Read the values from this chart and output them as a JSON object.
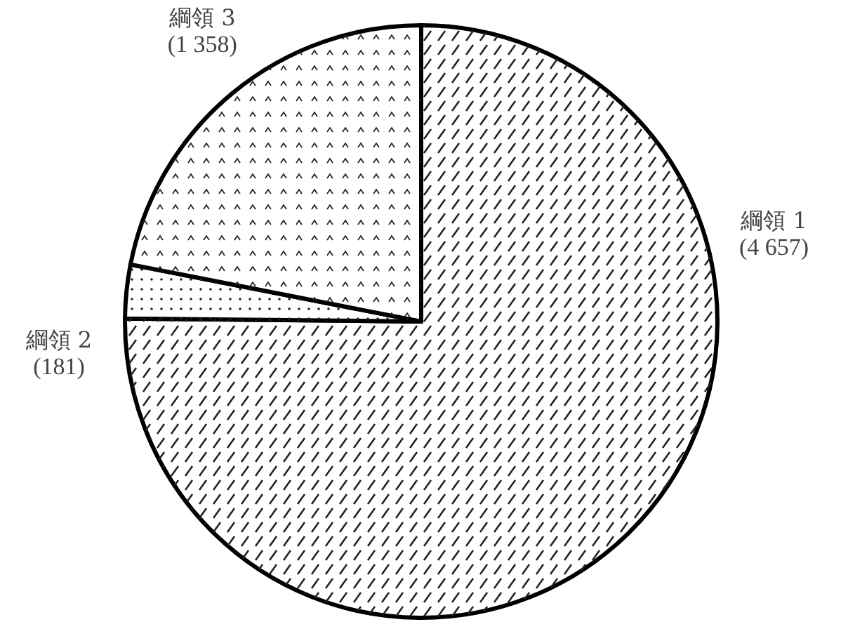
{
  "chart_data": {
    "type": "pie",
    "categories": [
      "綱領 1",
      "綱領 2",
      "綱領 3"
    ],
    "values": [
      4657,
      181,
      1358
    ],
    "value_labels": [
      "(4 657)",
      "(181)",
      "(1 358)"
    ],
    "colors": [
      "#ffffff",
      "#ffffff",
      "#ffffff"
    ]
  }
}
